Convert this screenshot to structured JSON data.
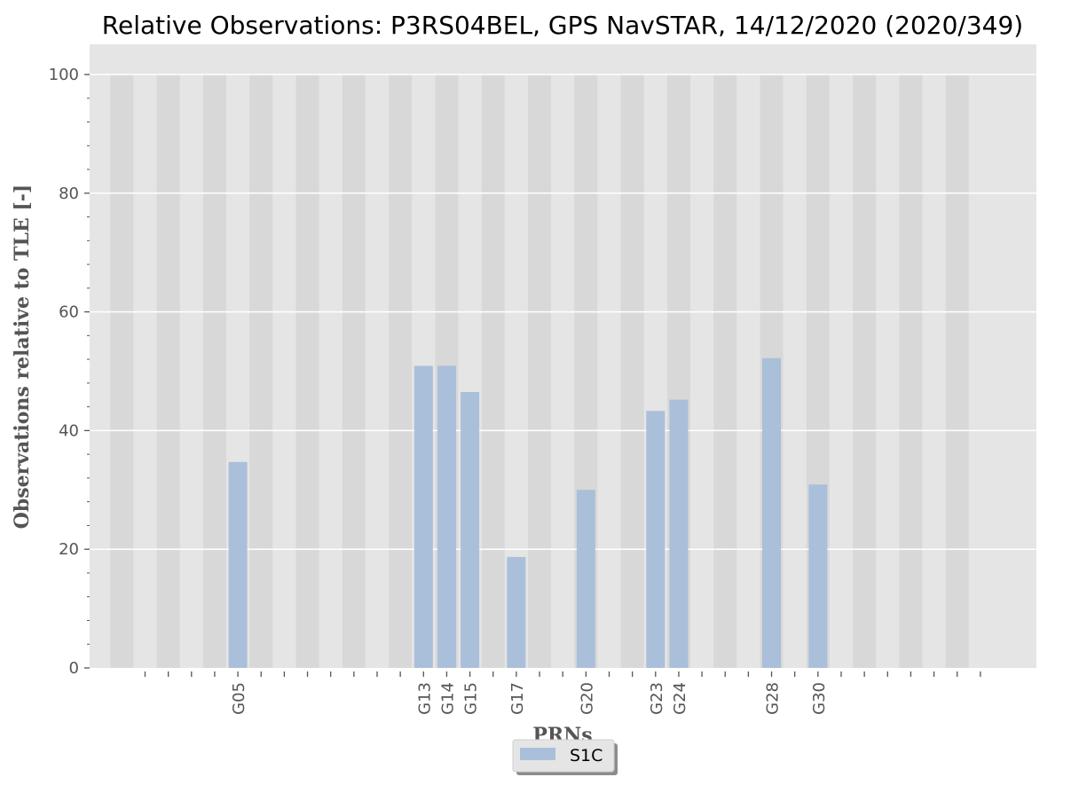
{
  "chart_data": {
    "type": "bar",
    "title": "Relative Observations: P3RS04BEL, GPS NavSTAR, 14/12/2020 (2020/349)",
    "xlabel": "PRNs",
    "ylabel": "Observations relative to TLE [-]",
    "ylim": [
      0,
      100
    ],
    "yticks": [
      0,
      20,
      40,
      60,
      80,
      100
    ],
    "grid": true,
    "legend_placement": "bottom-center",
    "slot_count": 37,
    "colors": {
      "bar": "#aabfd9",
      "plot_bg": "#e5e5e5",
      "stripe": "#d8d8d8",
      "grid": "#ffffff"
    },
    "series": [
      {
        "name": "S1C",
        "points": [
          {
            "label": "G05",
            "slot": 5,
            "value": 34.7
          },
          {
            "label": "G13",
            "slot": 13,
            "value": 50.9
          },
          {
            "label": "G14",
            "slot": 14,
            "value": 50.9
          },
          {
            "label": "G15",
            "slot": 15,
            "value": 46.5
          },
          {
            "label": "G17",
            "slot": 17,
            "value": 18.7
          },
          {
            "label": "G20",
            "slot": 20,
            "value": 30.0
          },
          {
            "label": "G23",
            "slot": 23,
            "value": 43.3
          },
          {
            "label": "G24",
            "slot": 24,
            "value": 45.2
          },
          {
            "label": "G28",
            "slot": 28,
            "value": 52.2
          },
          {
            "label": "G30",
            "slot": 30,
            "value": 30.9
          }
        ]
      }
    ]
  }
}
